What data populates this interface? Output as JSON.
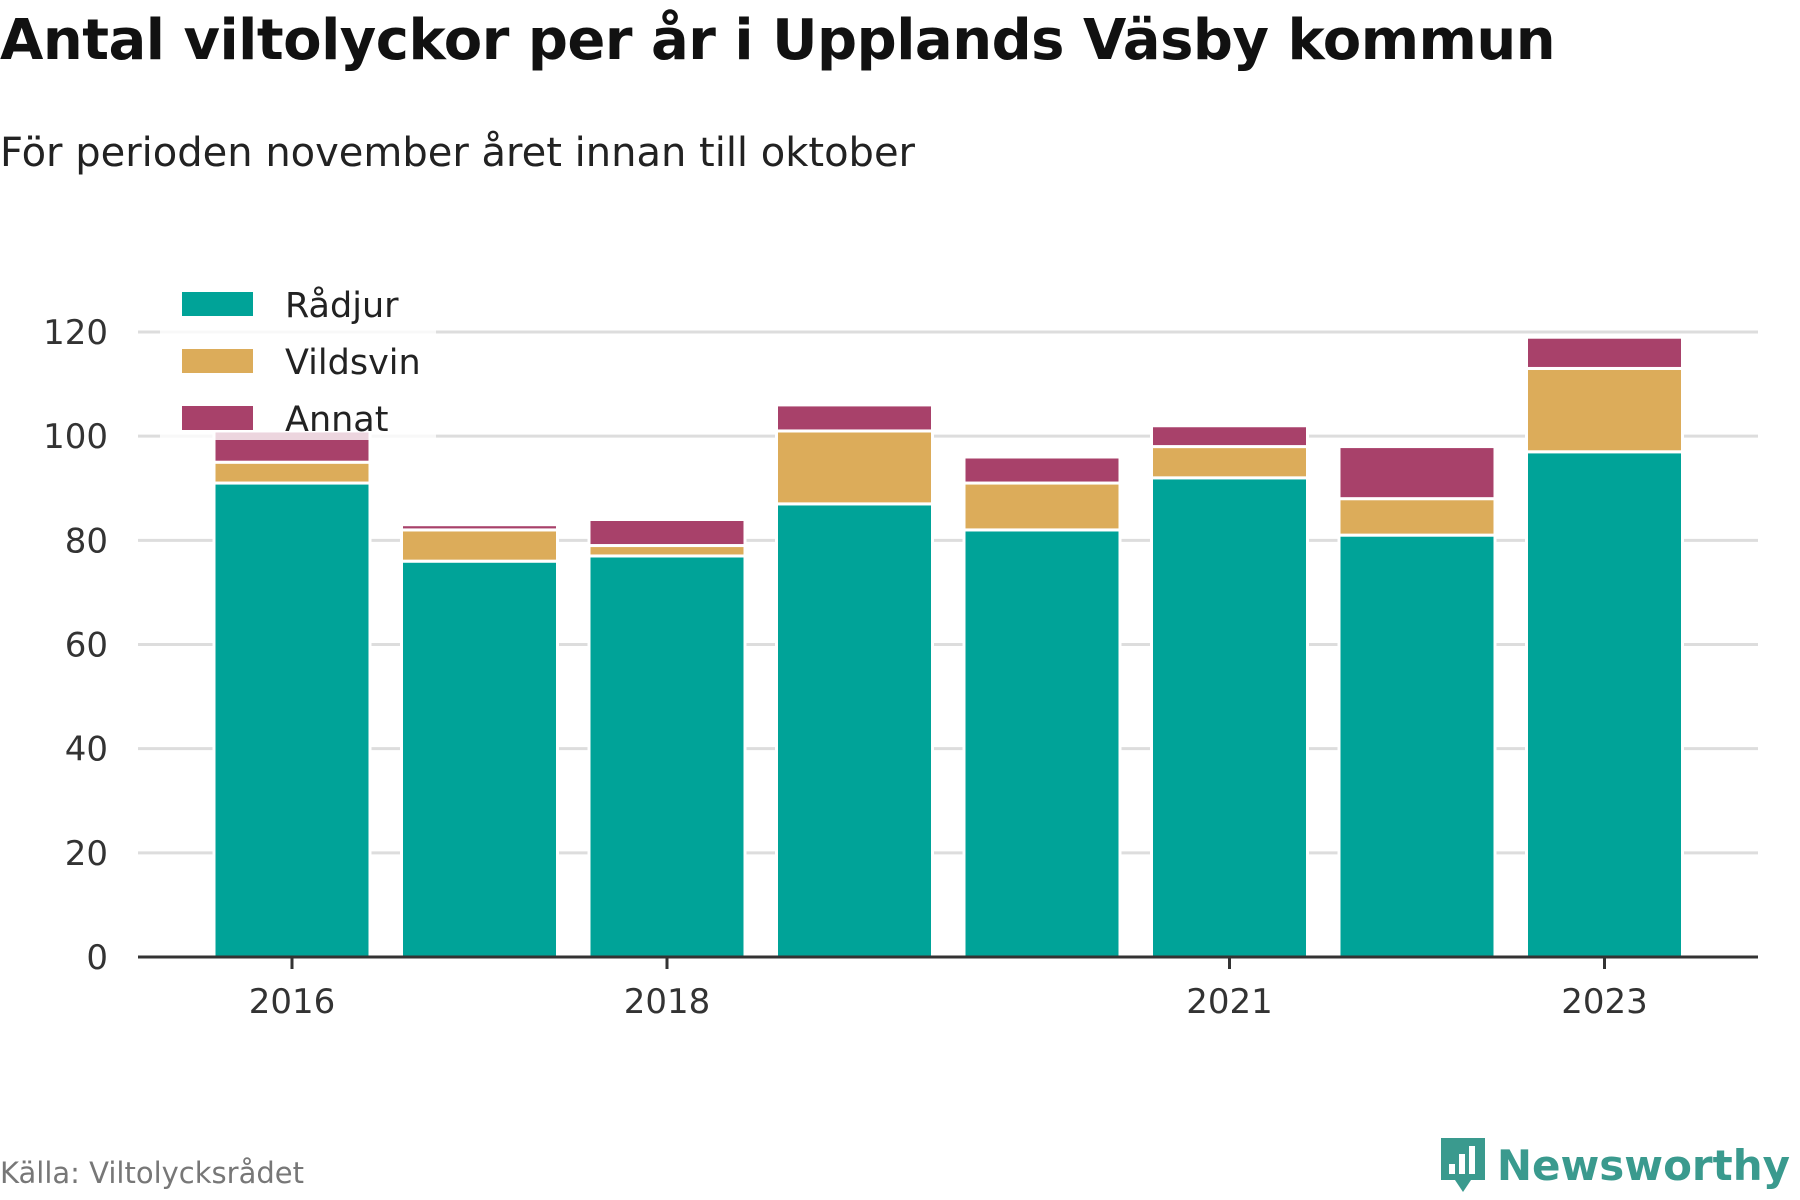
{
  "title": "Antal viltolyckor per år i Upplands Väsby kommun",
  "subtitle": "För perioden november året innan till oktober",
  "source": "Källa: Viltolycksrådet",
  "brand": {
    "name": "Newsworthy",
    "icon": "newsworthy-logo-icon",
    "color": "#3a9a8e"
  },
  "chart_data": {
    "type": "bar",
    "stacked": true,
    "categories": [
      "2016",
      "2017",
      "2018",
      "2019",
      "2020",
      "2021",
      "2022",
      "2023"
    ],
    "x_tick_labels": [
      "2016",
      "",
      "2018",
      "",
      "",
      "2021",
      "",
      "2023"
    ],
    "series": [
      {
        "name": "Rådjur",
        "color": "#00a398",
        "values": [
          91,
          76,
          77,
          87,
          82,
          92,
          81,
          97
        ]
      },
      {
        "name": "Vildsvin",
        "color": "#dcac5a",
        "values": [
          4,
          6,
          2,
          14,
          9,
          6,
          7,
          16
        ]
      },
      {
        "name": "Annat",
        "color": "#a8416a",
        "values": [
          6,
          1,
          5,
          5,
          5,
          4,
          10,
          6
        ]
      }
    ],
    "ylim": [
      0,
      120
    ],
    "yticks": [
      0,
      20,
      40,
      60,
      80,
      100,
      120
    ],
    "grid": true,
    "legend_position": "top-left",
    "xlabel": "",
    "ylabel": ""
  }
}
